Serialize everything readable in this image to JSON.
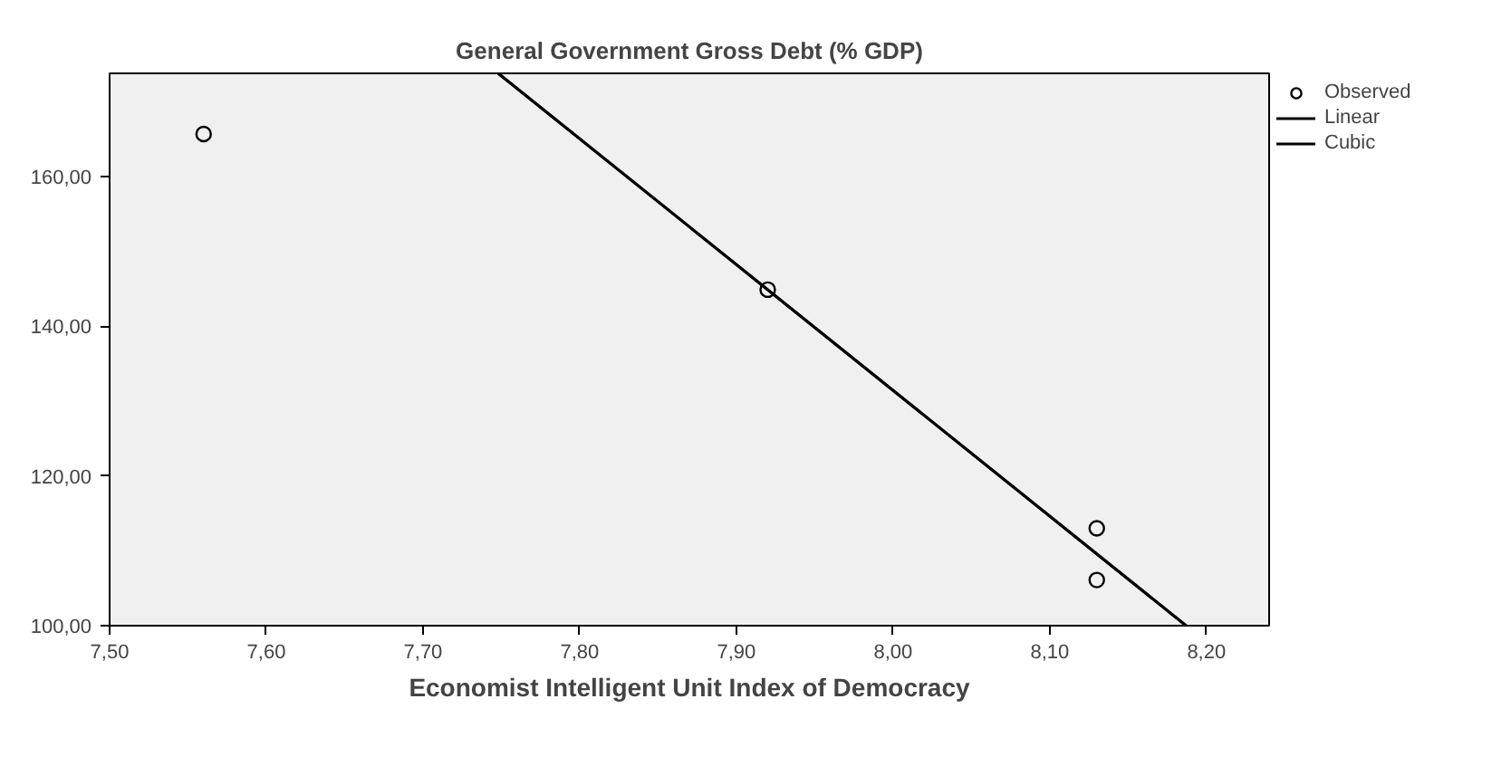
{
  "chart_data": {
    "type": "scatter",
    "title": "General Government Gross Debt (% GDP)",
    "xlabel": "Economist Intelligent Unit Index of Democracy",
    "series": [
      {
        "name": "Observed",
        "color": "#000000",
        "marker": "circle",
        "x": [
          7.56,
          7.92,
          8.13,
          8.13
        ],
        "values": [
          165.7,
          144.9,
          113.0,
          106.1
        ]
      },
      {
        "name": "Linear",
        "type": "line",
        "color": "#000000",
        "x": [
          7.748,
          8.187
        ],
        "values": [
          173.8,
          100.0
        ]
      },
      {
        "name": "Cubic",
        "type": "line",
        "color": "#000000",
        "x": [
          7.748,
          8.187
        ],
        "values": [
          173.8,
          100.0
        ]
      }
    ],
    "xlim": [
      7.5,
      8.24
    ],
    "ylim": [
      100,
      173.8
    ],
    "xticks": [
      {
        "value": 7.5,
        "label": "7,50"
      },
      {
        "value": 7.6,
        "label": "7,60"
      },
      {
        "value": 7.7,
        "label": "7,70"
      },
      {
        "value": 7.8,
        "label": "7,80"
      },
      {
        "value": 7.9,
        "label": "7,90"
      },
      {
        "value": 8.0,
        "label": "8,00"
      },
      {
        "value": 8.1,
        "label": "8,10"
      },
      {
        "value": 8.2,
        "label": "8,20"
      }
    ],
    "yticks": [
      {
        "value": 100,
        "label": "100,00"
      },
      {
        "value": 120,
        "label": "120,00"
      },
      {
        "value": 140,
        "label": "140,00"
      },
      {
        "value": 160,
        "label": "160,00"
      }
    ],
    "legend": "top right",
    "grid": false
  }
}
